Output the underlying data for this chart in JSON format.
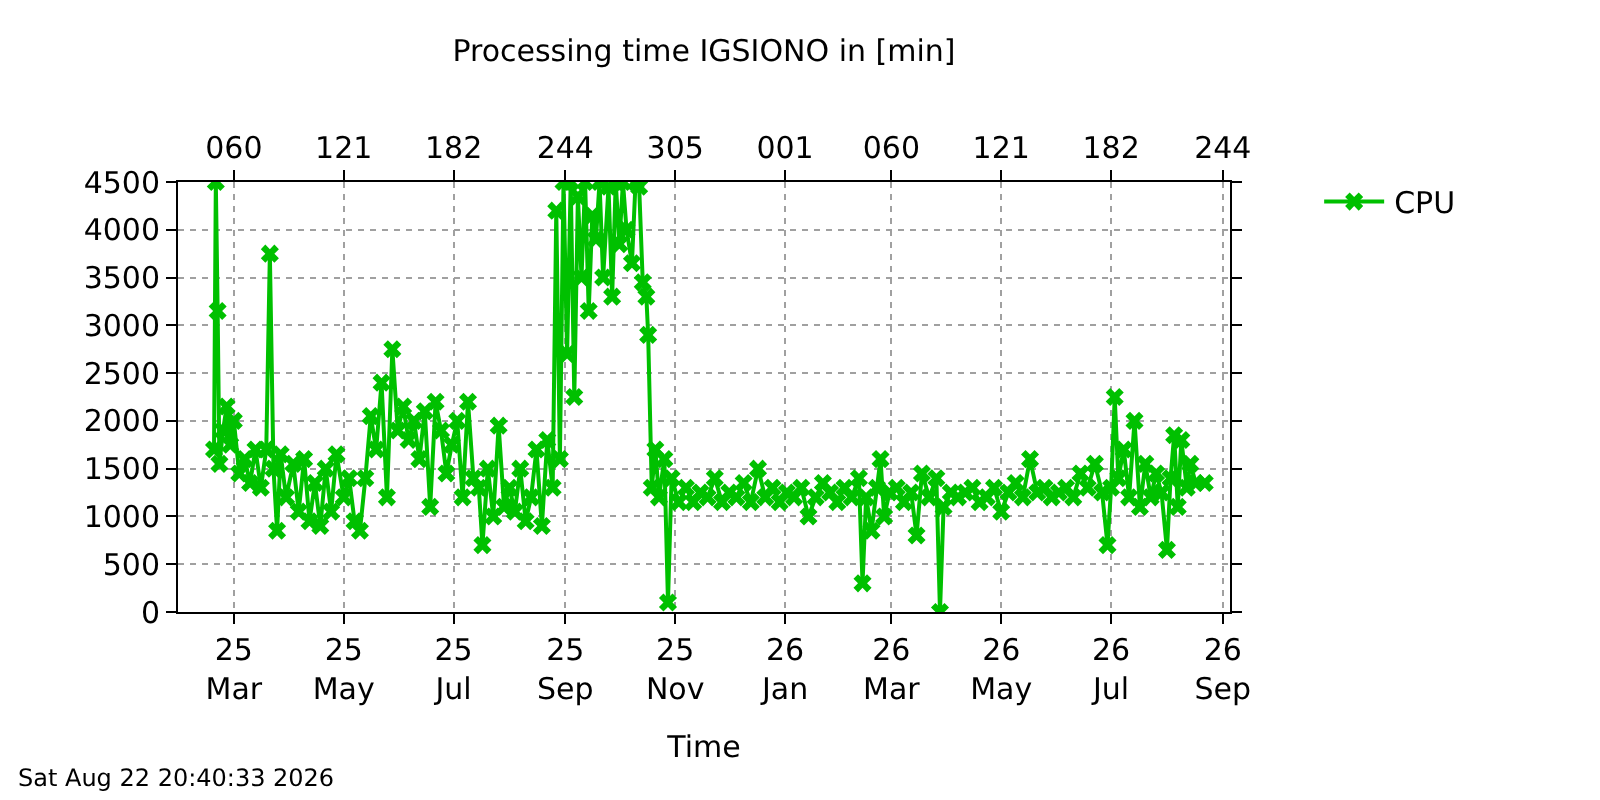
{
  "chart_data": {
    "type": "line",
    "title": "Processing time IGSIONO in [min]",
    "xlabel": "Time",
    "annotations": [
      "Sat Aug 22 20:40:33 2026"
    ],
    "x": [
      "2025-02-18",
      "2025-02-19",
      "2025-02-20",
      "2025-02-21",
      "2025-02-23",
      "2025-02-25",
      "2025-02-27",
      "2025-03-01",
      "2025-03-04",
      "2025-03-07",
      "2025-03-10",
      "2025-03-13",
      "2025-03-16",
      "2025-03-19",
      "2025-03-21",
      "2025-03-23",
      "2025-03-25",
      "2025-03-27",
      "2025-03-30",
      "2025-04-03",
      "2025-04-06",
      "2025-04-09",
      "2025-04-12",
      "2025-04-15",
      "2025-04-18",
      "2025-04-21",
      "2025-04-24",
      "2025-04-27",
      "2025-05-01",
      "2025-05-04",
      "2025-05-07",
      "2025-05-10",
      "2025-05-13",
      "2025-05-16",
      "2025-05-19",
      "2025-05-22",
      "2025-05-25",
      "2025-05-28",
      "2025-05-31",
      "2025-06-03",
      "2025-06-06",
      "2025-06-09",
      "2025-06-12",
      "2025-06-15",
      "2025-06-18",
      "2025-06-21",
      "2025-06-24",
      "2025-06-27",
      "2025-06-30",
      "2025-07-03",
      "2025-07-06",
      "2025-07-09",
      "2025-07-12",
      "2025-07-15",
      "2025-07-17",
      "2025-07-20",
      "2025-07-23",
      "2025-07-26",
      "2025-07-29",
      "2025-08-01",
      "2025-08-04",
      "2025-08-07",
      "2025-08-10",
      "2025-08-13",
      "2025-08-16",
      "2025-08-19",
      "2025-08-22",
      "2025-08-25",
      "2025-08-27",
      "2025-08-29",
      "2025-08-31",
      "2025-09-02",
      "2025-09-04",
      "2025-09-06",
      "2025-09-08",
      "2025-09-10",
      "2025-09-12",
      "2025-09-14",
      "2025-09-16",
      "2025-09-18",
      "2025-09-20",
      "2025-09-22",
      "2025-09-25",
      "2025-09-27",
      "2025-09-29",
      "2025-10-01",
      "2025-10-03",
      "2025-10-05",
      "2025-10-08",
      "2025-10-10",
      "2025-10-12",
      "2025-10-14",
      "2025-10-16",
      "2025-10-17",
      "2025-10-19",
      "2025-10-21",
      "2025-10-23",
      "2025-10-26",
      "2025-10-28",
      "2025-10-30",
      "2025-11-03",
      "2025-11-07",
      "2025-11-11",
      "2025-11-15",
      "2025-11-19",
      "2025-11-23",
      "2025-11-27",
      "2025-12-01",
      "2025-12-05",
      "2025-12-09",
      "2025-12-13",
      "2025-12-17",
      "2025-12-21",
      "2025-12-25",
      "2025-12-29",
      "2026-01-02",
      "2026-01-06",
      "2026-01-10",
      "2026-01-14",
      "2026-01-18",
      "2026-01-22",
      "2026-01-26",
      "2026-01-30",
      "2026-02-03",
      "2026-02-07",
      "2026-02-11",
      "2026-02-13",
      "2026-02-15",
      "2026-02-18",
      "2026-02-21",
      "2026-02-23",
      "2026-02-25",
      "2026-02-28",
      "2026-03-04",
      "2026-03-08",
      "2026-03-12",
      "2026-03-15",
      "2026-03-18",
      "2026-03-22",
      "2026-03-26",
      "2026-03-28",
      "2026-03-30",
      "2026-04-03",
      "2026-04-07",
      "2026-04-11",
      "2026-04-15",
      "2026-04-19",
      "2026-04-23",
      "2026-04-27",
      "2026-05-01",
      "2026-05-05",
      "2026-05-09",
      "2026-05-13",
      "2026-05-17",
      "2026-05-21",
      "2026-05-25",
      "2026-05-29",
      "2026-06-02",
      "2026-06-06",
      "2026-06-10",
      "2026-06-14",
      "2026-06-18",
      "2026-06-22",
      "2026-06-26",
      "2026-06-29",
      "2026-07-01",
      "2026-07-03",
      "2026-07-05",
      "2026-07-08",
      "2026-07-11",
      "2026-07-14",
      "2026-07-17",
      "2026-07-20",
      "2026-07-23",
      "2026-07-26",
      "2026-07-29",
      "2026-08-01",
      "2026-08-03",
      "2026-08-05",
      "2026-08-07",
      "2026-08-09",
      "2026-08-12",
      "2026-08-14",
      "2026-08-17",
      "2026-08-22"
    ],
    "series": [
      {
        "name": "CPU",
        "color": "#00c000",
        "values": [
          1700,
          4500,
          3150,
          1550,
          1900,
          2150,
          1750,
          2000,
          1450,
          1600,
          1350,
          1700,
          1300,
          1700,
          3750,
          1500,
          850,
          1650,
          1200,
          1550,
          1050,
          1600,
          950,
          1350,
          900,
          1500,
          1050,
          1650,
          1200,
          1400,
          950,
          850,
          1400,
          2050,
          1700,
          2400,
          1200,
          2750,
          1900,
          2150,
          1800,
          2000,
          1600,
          2100,
          1100,
          2200,
          1900,
          1450,
          1750,
          2000,
          1200,
          2200,
          1400,
          1300,
          700,
          1500,
          1000,
          1950,
          1100,
          1300,
          1050,
          1500,
          950,
          1200,
          1700,
          900,
          1800,
          1300,
          4200,
          1600,
          4500,
          2700,
          4500,
          2250,
          4350,
          3500,
          4500,
          3150,
          4150,
          3900,
          4500,
          3500,
          4450,
          3300,
          4500,
          3850,
          4500,
          4000,
          3650,
          4500,
          4450,
          3450,
          3300,
          2900,
          1300,
          1700,
          1200,
          1600,
          100,
          1400,
          1150,
          1300,
          1150,
          1250,
          1200,
          1400,
          1150,
          1250,
          1200,
          1350,
          1150,
          1500,
          1200,
          1300,
          1150,
          1250,
          1200,
          1300,
          1000,
          1200,
          1350,
          1250,
          1150,
          1300,
          1200,
          1400,
          300,
          1200,
          850,
          1300,
          1600,
          1000,
          1250,
          1300,
          1150,
          1250,
          800,
          1450,
          1200,
          1400,
          0,
          1100,
          1250,
          1200,
          1250,
          1300,
          1150,
          1200,
          1300,
          1050,
          1250,
          1350,
          1200,
          1600,
          1250,
          1300,
          1200,
          1250,
          1300,
          1200,
          1450,
          1300,
          1550,
          1250,
          700,
          1300,
          2250,
          1400,
          1700,
          1200,
          2000,
          1100,
          1550,
          1200,
          1450,
          1250,
          650,
          1400,
          1850,
          1100,
          1800,
          1300,
          1550,
          1350,
          1350
        ]
      }
    ],
    "xlim": [
      "2025-01-29",
      "2026-09-05"
    ],
    "xticks": [
      {
        "value": "2025-03-01",
        "label": "25\nMar"
      },
      {
        "value": "2025-05-01",
        "label": "25\nMay"
      },
      {
        "value": "2025-07-01",
        "label": "25\nJul"
      },
      {
        "value": "2025-09-01",
        "label": "25\nSep"
      },
      {
        "value": "2025-11-01",
        "label": "25\nNov"
      },
      {
        "value": "2026-01-01",
        "label": "26\nJan"
      },
      {
        "value": "2026-03-01",
        "label": "26\nMar"
      },
      {
        "value": "2026-05-01",
        "label": "26\nMay"
      },
      {
        "value": "2026-07-01",
        "label": "26\nJul"
      },
      {
        "value": "2026-09-01",
        "label": "26\nSep"
      }
    ],
    "x2lim": [
      "2025-01-29",
      "2026-09-05"
    ],
    "x2ticks": [
      {
        "value": "2025-03-01",
        "label": "060"
      },
      {
        "value": "2025-05-01",
        "label": "121"
      },
      {
        "value": "2025-07-01",
        "label": "182"
      },
      {
        "value": "2025-09-01",
        "label": "244"
      },
      {
        "value": "2025-11-01",
        "label": "305"
      },
      {
        "value": "2026-01-01",
        "label": "001"
      },
      {
        "value": "2026-03-01",
        "label": "060"
      },
      {
        "value": "2026-05-01",
        "label": "121"
      },
      {
        "value": "2026-07-01",
        "label": "182"
      },
      {
        "value": "2026-09-01",
        "label": "244"
      }
    ],
    "ylim": [
      0,
      4500
    ],
    "yticks": [
      0,
      500,
      1000,
      1500,
      2000,
      2500,
      3000,
      3500,
      4000,
      4500
    ],
    "grid": true,
    "legend": "top right",
    "marker": "cross",
    "line_style": "solid"
  }
}
